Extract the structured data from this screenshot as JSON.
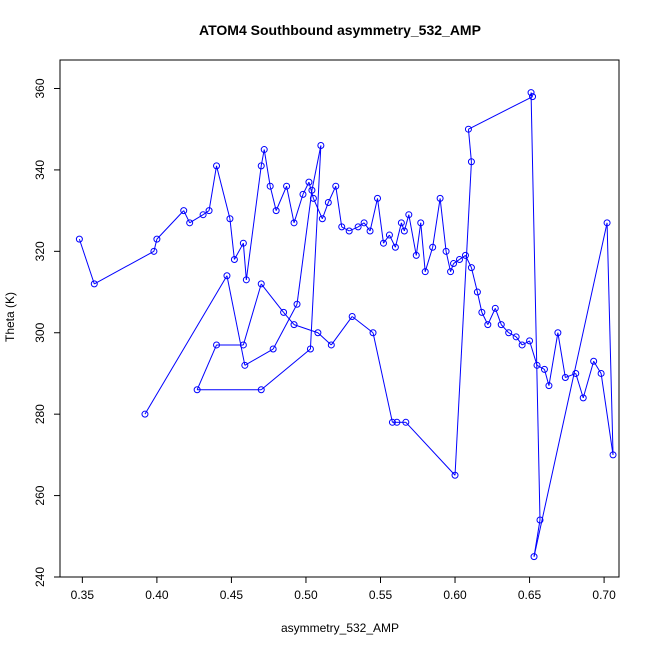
{
  "chart_data": {
    "type": "line",
    "title": "ATOM4 Southbound asymmetry_532_AMP",
    "xlabel": "asymmetry_532_AMP",
    "ylabel": "Theta (K)",
    "xlim": [
      0.335,
      0.71
    ],
    "ylim": [
      240,
      367
    ],
    "x_ticks": [
      0.35,
      0.4,
      0.45,
      0.5,
      0.55,
      0.6,
      0.65,
      0.7
    ],
    "x_tick_labels": [
      "0.35",
      "0.40",
      "0.45",
      "0.50",
      "0.55",
      "0.60",
      "0.65",
      "0.70"
    ],
    "y_ticks": [
      240,
      260,
      280,
      300,
      320,
      340,
      360
    ],
    "y_tick_labels": [
      "240",
      "260",
      "280",
      "300",
      "320",
      "340",
      "360"
    ],
    "grid": false,
    "series_color": "#0000ff",
    "series": [
      {
        "marker": "open-circle",
        "line": true,
        "x": [
          0.348,
          0.358,
          0.398,
          0.4,
          0.418,
          0.422,
          0.431,
          0.435,
          0.44,
          0.449,
          0.452,
          0.458,
          0.46,
          0.47,
          0.472,
          0.476,
          0.48,
          0.487,
          0.492,
          0.498,
          0.502,
          0.505,
          0.511,
          0.515,
          0.52,
          0.524,
          0.529,
          0.535,
          0.539,
          0.543,
          0.548,
          0.552,
          0.556,
          0.56,
          0.564,
          0.566,
          0.569,
          0.574,
          0.577,
          0.58,
          0.585,
          0.59,
          0.594,
          0.597,
          0.599,
          0.603,
          0.607,
          0.611,
          0.615,
          0.618,
          0.622,
          0.627,
          0.631,
          0.636,
          0.641,
          0.645,
          0.65,
          0.655,
          0.66,
          0.663,
          0.669,
          0.674,
          0.681,
          0.686,
          0.693,
          0.698,
          0.706,
          0.702,
          0.653,
          0.657,
          0.651,
          0.652,
          0.609,
          0.611,
          0.6,
          0.567,
          0.561,
          0.558,
          0.545,
          0.531,
          0.517,
          0.508,
          0.492,
          0.485,
          0.47,
          0.458,
          0.44,
          0.427,
          0.47,
          0.503,
          0.51,
          0.504,
          0.494,
          0.478,
          0.459,
          0.447,
          0.392
        ],
        "y": [
          323,
          312,
          320,
          323,
          330,
          327,
          329,
          330,
          341,
          328,
          318,
          322,
          313,
          341,
          345,
          336,
          330,
          336,
          327,
          334,
          337,
          333,
          328,
          332,
          336,
          326,
          325,
          326,
          327,
          325,
          333,
          322,
          324,
          321,
          327,
          325,
          329,
          319,
          327,
          315,
          321,
          333,
          320,
          315,
          317,
          318,
          319,
          316,
          310,
          305,
          302,
          306,
          302,
          300,
          299,
          297,
          298,
          292,
          291,
          287,
          300,
          289,
          290,
          284,
          293,
          290,
          270,
          327,
          245,
          254,
          359,
          358,
          350,
          342,
          265,
          278,
          278,
          278,
          300,
          304,
          297,
          300,
          302,
          305,
          312,
          297,
          297,
          286,
          286,
          296,
          346,
          335,
          307,
          296,
          292,
          314,
          280
        ]
      }
    ]
  }
}
